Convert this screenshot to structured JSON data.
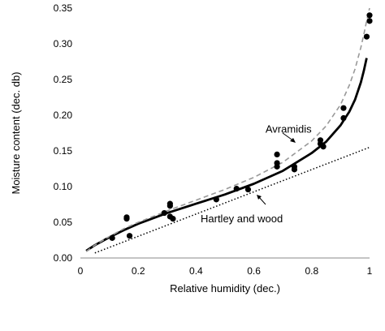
{
  "chart_data": {
    "type": "scatter",
    "xlabel": "Relative humidity (dec.)",
    "ylabel": "Moisture content (dec. db)",
    "xlim": [
      0,
      1
    ],
    "ylim": [
      0,
      0.35
    ],
    "x_ticks": [
      "0",
      "0.2",
      "0.4",
      "0.6",
      "0.8",
      "1"
    ],
    "y_ticks": [
      "0.00",
      "0.05",
      "0.10",
      "0.15",
      "0.20",
      "0.25",
      "0.30",
      "0.35"
    ],
    "grid": false,
    "series": [
      {
        "style": "markers",
        "color": "#000000",
        "x": [
          0.11,
          0.16,
          0.16,
          0.17,
          0.29,
          0.31,
          0.31,
          0.31,
          0.32,
          0.47,
          0.54,
          0.58,
          0.68,
          0.68,
          0.68,
          0.74,
          0.74,
          0.83,
          0.83,
          0.84,
          0.91,
          0.91,
          0.99,
          1.0,
          1.0
        ],
        "y": [
          0.028,
          0.057,
          0.055,
          0.031,
          0.063,
          0.076,
          0.073,
          0.058,
          0.055,
          0.082,
          0.097,
          0.096,
          0.145,
          0.133,
          0.128,
          0.128,
          0.124,
          0.165,
          0.16,
          0.156,
          0.21,
          0.196,
          0.31,
          0.34,
          0.332
        ]
      },
      {
        "style": "solid",
        "color": "#000000",
        "x": [
          0.02,
          0.05,
          0.1,
          0.15,
          0.2,
          0.3,
          0.4,
          0.5,
          0.6,
          0.7,
          0.8,
          0.85,
          0.9,
          0.93,
          0.95,
          0.97,
          0.98,
          0.99
        ],
        "y": [
          0.01,
          0.018,
          0.029,
          0.039,
          0.048,
          0.063,
          0.076,
          0.089,
          0.104,
          0.122,
          0.147,
          0.163,
          0.186,
          0.205,
          0.222,
          0.246,
          0.262,
          0.28
        ]
      },
      {
        "name": "Avramidis",
        "style": "dashed",
        "color": "#999999",
        "x": [
          0.02,
          0.05,
          0.1,
          0.15,
          0.2,
          0.3,
          0.4,
          0.5,
          0.6,
          0.7,
          0.8,
          0.85,
          0.9,
          0.93,
          0.95,
          0.97,
          0.98,
          0.99,
          1.0
        ],
        "y": [
          0.009,
          0.018,
          0.03,
          0.041,
          0.05,
          0.066,
          0.081,
          0.096,
          0.113,
          0.134,
          0.164,
          0.185,
          0.215,
          0.242,
          0.265,
          0.295,
          0.313,
          0.332,
          0.35
        ]
      },
      {
        "name": "Hartley and wood",
        "style": "dotted",
        "color": "#000000",
        "x": [
          0.05,
          1.0
        ],
        "y": [
          0.007,
          0.155
        ]
      }
    ],
    "annotations": [
      {
        "text": "Avramidis",
        "x": 0.64,
        "y": 0.18
      },
      {
        "text": "Hartley and wood",
        "x": 0.5,
        "y": 0.057
      }
    ]
  }
}
